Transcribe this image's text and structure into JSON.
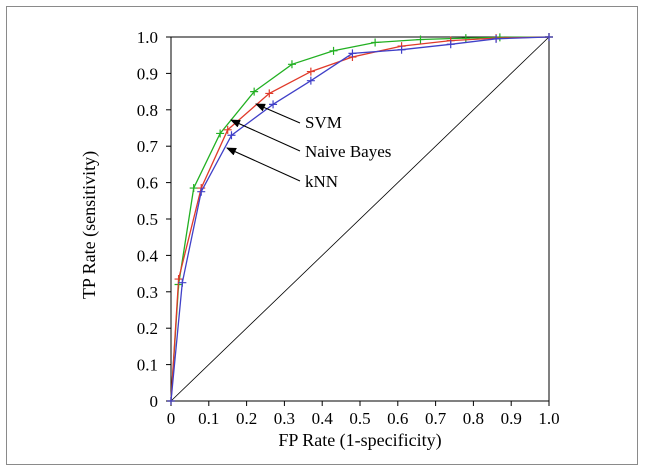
{
  "chart_data": {
    "type": "line",
    "title": "",
    "xlabel": "FP Rate (1-specificity)",
    "ylabel": "TP Rate (sensitivity)",
    "xlim": [
      0,
      1
    ],
    "ylim": [
      0,
      1
    ],
    "x_ticks": [
      "0",
      "0.1",
      "0.2",
      "0.3",
      "0.4",
      "0.5",
      "0.6",
      "0.7",
      "0.8",
      "0.9",
      "1.0"
    ],
    "y_ticks": [
      "0",
      "0.1",
      "0.2",
      "0.3",
      "0.4",
      "0.5",
      "0.6",
      "0.7",
      "0.8",
      "0.9",
      "1.0"
    ],
    "grid": false,
    "legend": "none (series labelled by arrow annotations)",
    "diagonal": {
      "x": [
        0,
        1
      ],
      "y": [
        0,
        1
      ],
      "color": "#000000"
    },
    "series": [
      {
        "name": "SVM",
        "color": "#22b022",
        "x": [
          0,
          0.02,
          0.06,
          0.13,
          0.22,
          0.32,
          0.43,
          0.54,
          0.66,
          0.78,
          0.87,
          1.0
        ],
        "y": [
          0,
          0.32,
          0.585,
          0.735,
          0.85,
          0.925,
          0.962,
          0.985,
          0.993,
          0.997,
          0.999,
          1.0
        ]
      },
      {
        "name": "Naive Bayes",
        "color": "#e03a2a",
        "x": [
          0,
          0.02,
          0.08,
          0.15,
          0.26,
          0.37,
          0.48,
          0.61,
          0.74,
          0.86,
          1.0
        ],
        "y": [
          0,
          0.335,
          0.585,
          0.745,
          0.845,
          0.905,
          0.945,
          0.975,
          0.99,
          0.997,
          1.0
        ]
      },
      {
        "name": "kNN",
        "color": "#4040c8",
        "x": [
          0,
          0.03,
          0.08,
          0.16,
          0.27,
          0.37,
          0.48,
          0.61,
          0.74,
          0.86,
          1.0
        ],
        "y": [
          0,
          0.325,
          0.575,
          0.73,
          0.815,
          0.88,
          0.955,
          0.965,
          0.98,
          0.995,
          1.0
        ]
      }
    ],
    "annotations": [
      {
        "label": "SVM",
        "target_series": "SVM"
      },
      {
        "label": "Naive Bayes",
        "target_series": "Naive Bayes"
      },
      {
        "label": "kNN",
        "target_series": "kNN"
      }
    ]
  }
}
